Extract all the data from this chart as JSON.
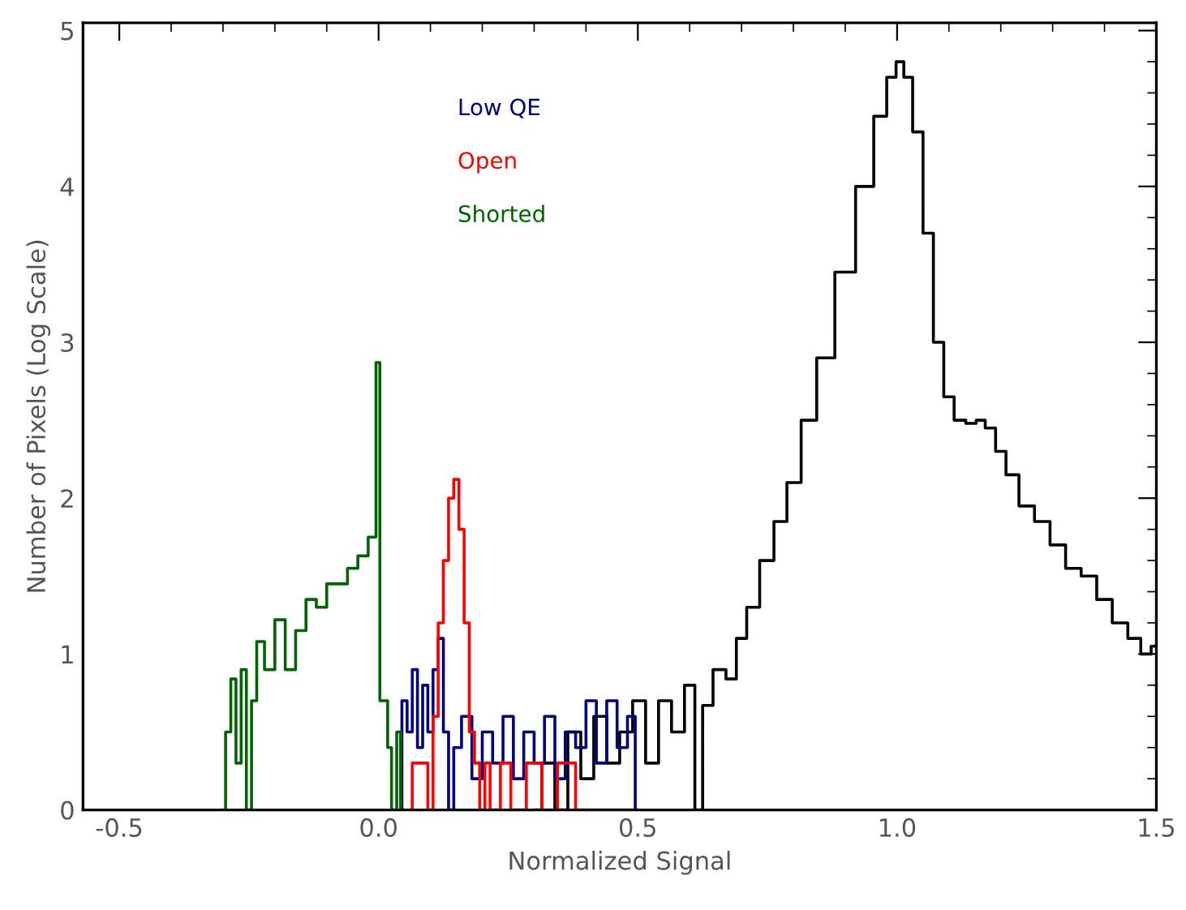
{
  "chart_data": {
    "type": "step",
    "xlabel": "Normalized Signal",
    "ylabel": "Number of Pixels (Log Scale)",
    "xlim": [
      -0.57,
      1.5
    ],
    "ylim": [
      0,
      5.05
    ],
    "xticks": [
      {
        "value": -0.5,
        "label": "-0.5"
      },
      {
        "value": 0,
        "label": "0.0"
      },
      {
        "value": 0.5,
        "label": "0.5"
      },
      {
        "value": 1,
        "label": "1.0"
      },
      {
        "value": 1.5,
        "label": "1.5"
      }
    ],
    "yticks": [
      0,
      1,
      2,
      3,
      4,
      5
    ],
    "grid": false,
    "legend": "top left",
    "series": [
      {
        "color": "#000000",
        "x": [
          0.3,
          0.33,
          0.35,
          0.38,
          0.4,
          0.43,
          0.45,
          0.48,
          0.5,
          0.53,
          0.55,
          0.58,
          0.6,
          0.62,
          0.63,
          0.66,
          0.68,
          0.7,
          0.72,
          0.75,
          0.775,
          0.8,
          0.83,
          0.86,
          0.9,
          0.94,
          0.97,
          0.99,
          1.006,
          1.02,
          1.04,
          1.06,
          1.08,
          1.1,
          1.12,
          1.145,
          1.16,
          1.18,
          1.2,
          1.22,
          1.25,
          1.28,
          1.31,
          1.34,
          1.37,
          1.4,
          1.43,
          1.46,
          1.48,
          1.5
        ],
        "values": [
          0.0,
          0.3,
          0.0,
          0.5,
          0.2,
          0.6,
          0.3,
          0.5,
          0.7,
          0.3,
          0.7,
          0.5,
          0.8,
          0.0,
          0.67,
          0.9,
          0.84,
          1.1,
          1.3,
          1.6,
          1.85,
          2.1,
          2.5,
          2.9,
          3.45,
          4.0,
          4.45,
          4.7,
          4.8,
          4.7,
          4.35,
          3.7,
          3.0,
          2.65,
          2.5,
          2.48,
          2.5,
          2.45,
          2.3,
          2.15,
          1.95,
          1.85,
          1.7,
          1.55,
          1.5,
          1.35,
          1.2,
          1.1,
          1.0,
          1.05
        ]
      },
      {
        "name": "Low QE",
        "color": "#000080",
        "x": [
          0.04,
          0.05,
          0.06,
          0.07,
          0.08,
          0.09,
          0.1,
          0.11,
          0.12,
          0.13,
          0.14,
          0.15,
          0.17,
          0.19,
          0.21,
          0.23,
          0.25,
          0.27,
          0.29,
          0.31,
          0.33,
          0.35,
          0.37,
          0.39,
          0.41,
          0.43,
          0.45,
          0.47,
          0.49,
          0.5
        ],
        "values": [
          0.0,
          0.7,
          0.5,
          0.9,
          0.4,
          0.8,
          0.5,
          0.9,
          1.1,
          0.5,
          0.0,
          0.4,
          0.6,
          0.2,
          0.5,
          0.3,
          0.6,
          0.2,
          0.5,
          0.3,
          0.6,
          0.2,
          0.5,
          0.4,
          0.7,
          0.3,
          0.7,
          0.4,
          0.6,
          0.0
        ]
      },
      {
        "name": "Open",
        "color": "#ff0000",
        "x": [
          0.06,
          0.07,
          0.09,
          0.1,
          0.11,
          0.12,
          0.13,
          0.14,
          0.15,
          0.16,
          0.17,
          0.18,
          0.19,
          0.2,
          0.21,
          0.22,
          0.25,
          0.26,
          0.31,
          0.32,
          0.37,
          0.39,
          0.5
        ],
        "values": [
          0.0,
          0.3,
          0.3,
          0.0,
          0.6,
          1.2,
          1.6,
          2.0,
          2.12,
          1.8,
          1.2,
          0.5,
          0.3,
          0.0,
          0.3,
          0.0,
          0.3,
          0.0,
          0.3,
          0.0,
          0.3,
          0.0,
          0.0
        ]
      },
      {
        "name": "Shorted",
        "color": "#006400",
        "x": [
          -0.3,
          -0.29,
          -0.28,
          -0.27,
          -0.26,
          -0.25,
          -0.24,
          -0.23,
          -0.21,
          -0.19,
          -0.17,
          -0.15,
          -0.13,
          -0.11,
          -0.09,
          -0.07,
          -0.05,
          -0.03,
          -0.01,
          0.0,
          0.005,
          0.015,
          0.02,
          0.03,
          0.04,
          0.045
        ],
        "values": [
          0.0,
          0.5,
          0.84,
          0.3,
          0.9,
          0.0,
          0.7,
          1.08,
          0.9,
          1.22,
          0.9,
          1.15,
          1.35,
          1.3,
          1.45,
          1.45,
          1.55,
          1.63,
          1.75,
          2.87,
          0.7,
          0.7,
          0.4,
          0.0,
          0.5,
          0.0
        ]
      }
    ]
  }
}
